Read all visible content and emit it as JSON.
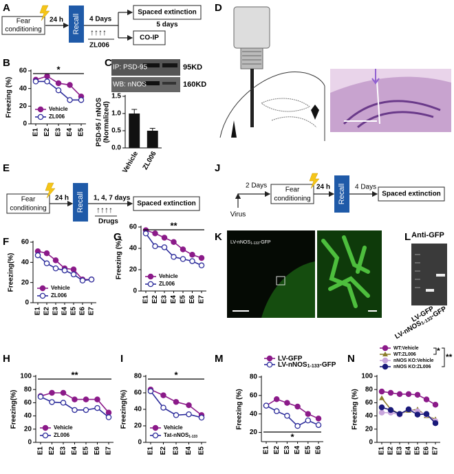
{
  "panel_labels": [
    "A",
    "B",
    "C",
    "D",
    "E",
    "F",
    "G",
    "H",
    "I",
    "J",
    "K",
    "L",
    "M",
    "N"
  ],
  "diagrams": {
    "A": {
      "fear_conditioning": [
        "Fear",
        "conditioning"
      ],
      "interval": "24 h",
      "recall": "Recall",
      "delay": "4 Days",
      "arrows": "↑↑↑↑",
      "drug": "ZL006",
      "extinction": "Spaced extinction",
      "extinction_duration": "5 days",
      "assay": "CO-IP"
    },
    "C_blot": {
      "rows": [
        "IP: PSD-95",
        "WB: nNOS"
      ],
      "sizes": [
        "95KD",
        "160KD"
      ]
    },
    "E": {
      "fear_conditioning": [
        "Fear",
        "conditioning"
      ],
      "interval": "24 h",
      "recall": "Recall",
      "timing": "1, 4, 7 days",
      "arrows": "↑↑↑↑",
      "drug": "Drugs",
      "extinction": "Spaced extinction"
    },
    "J": {
      "virus": "Virus",
      "delay1": "2 Days",
      "fear_conditioning": [
        "Fear",
        "conditioning"
      ],
      "interval": "24 h",
      "recall": "Recall",
      "delay2": "4 Days",
      "extinction": "Spaced extinction"
    },
    "K": {
      "label": "LV-nNOS",
      "label_subscript": "1-133",
      "label_suffix": "-GFP"
    },
    "L": {
      "title": "Anti-GFP",
      "lanes": [
        {
          "label": "LV-GFP"
        },
        {
          "label": "LV-nNOS",
          "subscript": "1-133",
          "suffix": "-GFP"
        }
      ]
    }
  },
  "chart_data": [
    {
      "type": "line",
      "ylabel": "Freezing (%)",
      "categories": [
        "E1",
        "E2",
        "E3",
        "E4",
        "E5"
      ],
      "ylim": [
        0,
        60
      ],
      "yticks": [
        0,
        20,
        40,
        60
      ],
      "legend": "lower left",
      "significance": [
        "*"
      ],
      "significance_position": "top",
      "series": [
        {
          "name": "Vehicle",
          "color": "#8b1a89",
          "marker": "filled",
          "values": [
            50,
            54,
            46,
            44,
            31
          ]
        },
        {
          "name": "ZL006",
          "color": "#2a2a9a",
          "marker": "open",
          "values": [
            48,
            48,
            38,
            27,
            27
          ]
        }
      ]
    },
    {
      "type": "bar",
      "ylabel": [
        "PSD-95 / nNOS",
        "(Normalized)"
      ],
      "categories": [
        "Vehicle",
        "ZL006"
      ],
      "values": [
        1.0,
        0.5
      ],
      "errors": [
        0.12,
        0.07
      ],
      "color": "#111111",
      "ylim": [
        0,
        1.5
      ],
      "yticks": [
        {
          "value": 0,
          "label": "0.0"
        },
        0.5,
        {
          "value": 1,
          "label": "1.0"
        },
        1.5
      ]
    },
    {
      "type": "line",
      "ylabel": "Freezing(%)",
      "categories": [
        "E1",
        "E2",
        "E3",
        "E4",
        "E5",
        "E6",
        "E7"
      ],
      "ylim": [
        0,
        60
      ],
      "yticks": [
        0,
        20,
        40,
        60
      ],
      "legend": "lower left",
      "significance": [],
      "significance_position": "top",
      "series": [
        {
          "name": "Vehicle",
          "color": "#8b1a89",
          "marker": "filled",
          "values": [
            51,
            49,
            42,
            34,
            33,
            23,
            23
          ]
        },
        {
          "name": "ZL006",
          "color": "#2a2a9a",
          "marker": "open",
          "values": [
            47,
            39,
            34,
            32,
            28,
            22,
            23
          ]
        }
      ]
    },
    {
      "type": "line",
      "ylabel": "Freezing (%)",
      "categories": [
        "E1",
        "E2",
        "E3",
        "E4",
        "E5",
        "E6",
        "E7"
      ],
      "ylim": [
        0,
        60
      ],
      "yticks": [
        0,
        20,
        40,
        60
      ],
      "legend": "lower left",
      "significance": [
        "**"
      ],
      "significance_position": "top",
      "series": [
        {
          "name": "Vehicle",
          "color": "#8b1a89",
          "marker": "filled",
          "values": [
            57,
            54,
            50,
            46,
            39,
            34,
            31
          ]
        },
        {
          "name": "ZL006",
          "color": "#2a2a9a",
          "marker": "open",
          "values": [
            54,
            42,
            41,
            32,
            30,
            28,
            24
          ]
        }
      ]
    },
    {
      "type": "line",
      "ylabel": "Freezing(%)",
      "categories": [
        "E1",
        "E2",
        "E3",
        "E4",
        "E5",
        "E6",
        "E7"
      ],
      "ylim": [
        0,
        100
      ],
      "yticks": [
        0,
        20,
        40,
        60,
        80,
        100
      ],
      "legend": "lower left",
      "significance": [
        "**"
      ],
      "significance_position": "top",
      "series": [
        {
          "name": "Vehicle",
          "color": "#8b1a89",
          "marker": "filled",
          "values": [
            70,
            75,
            75,
            65,
            65,
            65,
            45
          ]
        },
        {
          "name": "ZL006",
          "color": "#2a2a9a",
          "marker": "open",
          "values": [
            69,
            61,
            60,
            49,
            49,
            52,
            38
          ]
        }
      ]
    },
    {
      "type": "line",
      "ylabel": "Freezing(%)",
      "categories": [
        "E1",
        "E2",
        "E3",
        "E4",
        "E5"
      ],
      "ylim": [
        0,
        80
      ],
      "yticks": [
        0,
        20,
        40,
        60,
        80
      ],
      "legend": "lower left",
      "significance": [
        "*"
      ],
      "significance_position": "top",
      "series": [
        {
          "name": "Vehicle",
          "color": "#8b1a89",
          "marker": "filled",
          "values": [
            64,
            57,
            49,
            45,
            33
          ]
        },
        {
          "name": "Tat-nNOS",
          "name_subscript": "1-133",
          "color": "#2a2a9a",
          "marker": "open",
          "values": [
            62,
            42,
            33,
            34,
            30
          ]
        }
      ]
    },
    {
      "type": "line",
      "ylabel": "Freezing (%)",
      "categories": [
        "E1",
        "E2",
        "E3",
        "E4",
        "E5",
        "E6"
      ],
      "ylim": [
        10,
        80
      ],
      "yticks": [
        20,
        40,
        60,
        80
      ],
      "legend": "above",
      "significance": [
        "*"
      ],
      "significance_position": "bottom",
      "series": [
        {
          "name": "LV-GFP",
          "color": "#8b1a89",
          "marker": "filled",
          "values": [
            49,
            56,
            52,
            48,
            40,
            35
          ]
        },
        {
          "name": "LV-nNOS",
          "name_subscript": "1-133",
          "name_suffix": "-GFP",
          "color": "#2a2a9a",
          "marker": "open",
          "values": [
            49,
            43,
            38,
            27,
            33,
            28
          ]
        }
      ]
    },
    {
      "type": "line",
      "ylabel": "Freezing (%)",
      "categories": [
        "E1",
        "E2",
        "E3",
        "E4",
        "E5",
        "E6",
        "E7"
      ],
      "ylim": [
        0,
        100
      ],
      "yticks": [
        0,
        20,
        40,
        60,
        80,
        100
      ],
      "legend": "above",
      "significance": [
        "*",
        "**"
      ],
      "significance_position": "legend",
      "series": [
        {
          "name": "WT:Vehicle",
          "color": "#8b1a89",
          "marker": "filled",
          "values": [
            77,
            75,
            73,
            73,
            72,
            65,
            57
          ]
        },
        {
          "name": "WT:ZL006",
          "color": "#8b7d2a",
          "marker": "triangle",
          "values": [
            67,
            50,
            43,
            48,
            50,
            40,
            35
          ]
        },
        {
          "name": "nNOS KO:Vehicle",
          "color": "#c9a6dc",
          "marker": "filled",
          "values": [
            45,
            45,
            42,
            50,
            47,
            42,
            32
          ]
        },
        {
          "name": "nNOS KO:ZL006",
          "color": "#1a1a7a",
          "marker": "filled",
          "values": [
            53,
            49,
            43,
            50,
            42,
            43,
            29
          ]
        }
      ]
    }
  ]
}
